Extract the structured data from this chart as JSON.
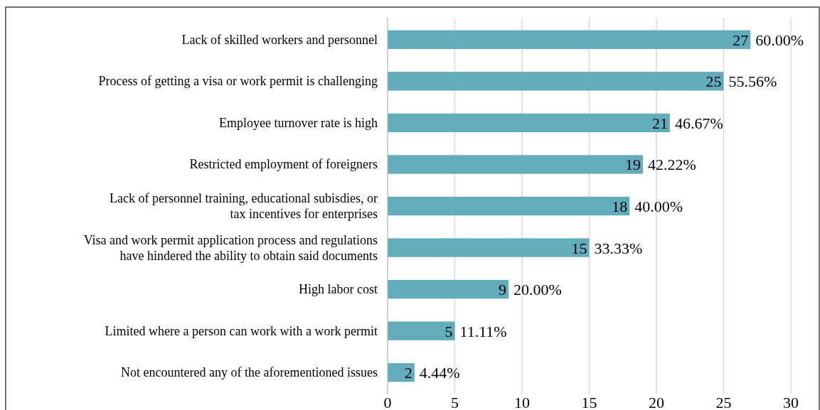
{
  "chart_data": {
    "type": "bar",
    "orientation": "horizontal",
    "categories": [
      "Lack of skilled workers and personnel",
      "Process of getting a visa or work permit is challenging",
      "Employee turnover rate is high",
      "Restricted employment of foreigners",
      "Lack of personnel training, educational subisdies, or\ntax incentives for enterprises",
      "Visa and work permit application process and regulations\nhave hindered the ability to obtain said documents",
      "High labor cost",
      "Limited where a person can work with a work permit",
      "Not encountered any of the aforementioned issues"
    ],
    "values": [
      27,
      25,
      21,
      19,
      18,
      15,
      9,
      5,
      2
    ],
    "color": "#62acbb",
    "xlim": [
      0,
      30
    ],
    "xticks": [
      0,
      5,
      10,
      15,
      20,
      25,
      30
    ],
    "grid": "x",
    "data_labels": true,
    "annotations": [
      {
        "text": "60.00%",
        "x": 27,
        "y": "Lack of skilled workers and personnel"
      },
      {
        "text": "55.56%",
        "x": 25,
        "y": "Process of getting a visa or work permit is challenging"
      },
      {
        "text": "46.67%",
        "x": 21,
        "y": "Employee turnover rate is high"
      },
      {
        "text": "42.22%",
        "x": 19,
        "y": "Restricted employment of foreigners"
      },
      {
        "text": "40.00%",
        "x": 18,
        "y": "Lack of personnel training, educational subisdies, or\ntax incentives for enterprises"
      },
      {
        "text": "33.33%",
        "x": 15,
        "y": "Visa and work permit application process and regulations\nhave hindered the ability to obtain said documents"
      },
      {
        "text": "20.00%",
        "x": 9,
        "y": "High labor cost"
      },
      {
        "text": "11.11%",
        "x": 5,
        "y": "Limited where a person can work with a work permit"
      },
      {
        "text": "4.44%",
        "x": 2,
        "y": "Not encountered any of the aforementioned issues"
      }
    ]
  }
}
